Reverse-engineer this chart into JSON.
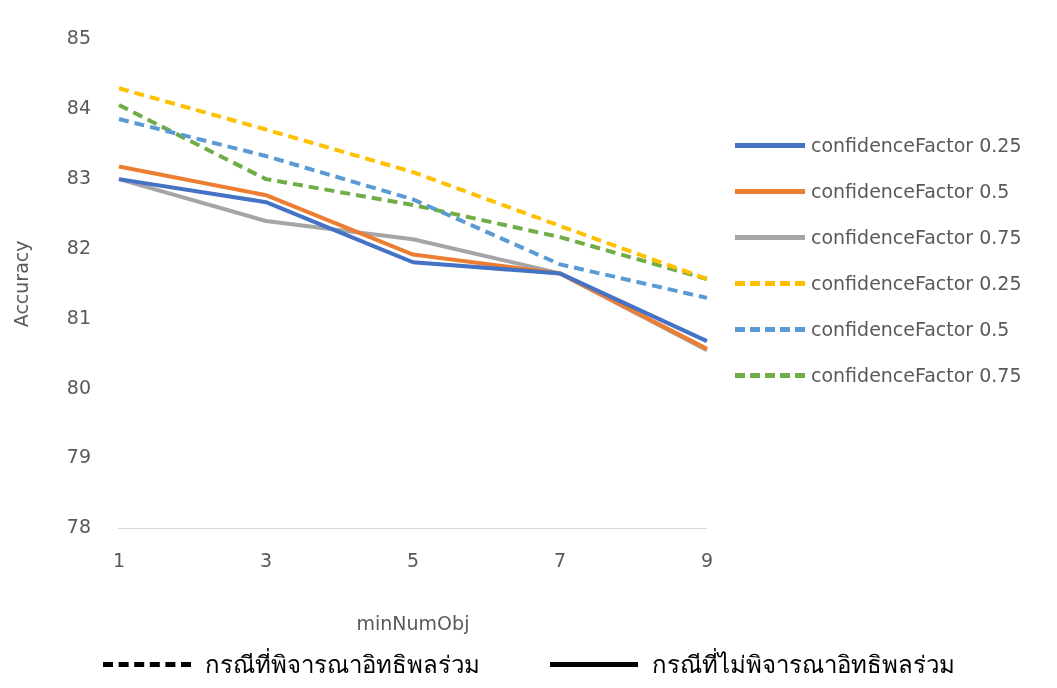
{
  "chart_data": {
    "type": "line",
    "xlabel": "minNumObj",
    "ylabel": "Accuracy",
    "categories": [
      "1",
      "3",
      "5",
      "7",
      "9"
    ],
    "series": [
      {
        "name": "confidenceFactor 0.25",
        "color": "#4472c4",
        "line_style": "solid",
        "values": [
          83.0,
          82.67,
          81.81,
          81.65,
          80.68
        ]
      },
      {
        "name": "confidenceFactor 0.5",
        "color": "#ed7d31",
        "line_style": "solid",
        "values": [
          83.18,
          82.77,
          81.92,
          81.65,
          80.57
        ]
      },
      {
        "name": "confidenceFactor 0.75",
        "color": "#a5a5a5",
        "line_style": "solid",
        "values": [
          83.0,
          82.4,
          82.14,
          81.65,
          80.55
        ]
      },
      {
        "name": "confidenceFactor 0.25",
        "color": "#ffc000",
        "line_style": "dashed",
        "values": [
          84.3,
          83.71,
          83.1,
          82.33,
          81.57
        ]
      },
      {
        "name": "confidenceFactor 0.5",
        "color": "#5b9bd5",
        "line_style": "dashed",
        "values": [
          83.86,
          83.33,
          82.71,
          81.78,
          81.3
        ]
      },
      {
        "name": "confidenceFactor 0.75",
        "color": "#70ad47",
        "line_style": "dashed",
        "values": [
          84.06,
          83.0,
          82.63,
          82.17,
          81.57
        ]
      }
    ],
    "ylim": [
      78,
      85
    ],
    "yticks": [
      78,
      79,
      80,
      81,
      82,
      83,
      84,
      85
    ],
    "grid": false,
    "legend": "right",
    "marker": "none",
    "annotations": [
      "กรณีที่พิจารณาอิทธิพลร่วม",
      "กรณีที่ไม่พิจารณาอิทธิพลร่วม"
    ]
  }
}
